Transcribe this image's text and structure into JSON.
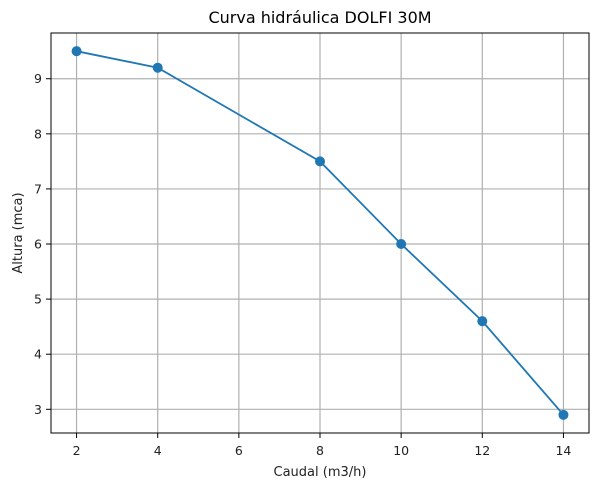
{
  "chart_data": {
    "type": "line",
    "title": "Curva hidráulica DOLFI 30M",
    "xlabel": "Caudal (m3/h)",
    "ylabel": "Altura (mca)",
    "x": [
      2,
      4,
      8,
      10,
      12,
      14
    ],
    "series": [
      {
        "name": "DOLFI 30M",
        "values": [
          9.5,
          9.2,
          7.5,
          6.0,
          4.6,
          2.9
        ],
        "color": "#1f77b4",
        "marker": "circle"
      }
    ],
    "xticks": [
      2,
      4,
      6,
      8,
      10,
      12,
      14
    ],
    "yticks": [
      3,
      4,
      5,
      6,
      7,
      8,
      9
    ],
    "xlim": [
      1.37,
      14.63
    ],
    "ylim": [
      2.57,
      9.83
    ],
    "grid": true,
    "legend": false
  },
  "labels": {
    "title": "Curva hidráulica DOLFI 30M",
    "xlabel": "Caudal (m3/h)",
    "ylabel": "Altura (mca)"
  }
}
